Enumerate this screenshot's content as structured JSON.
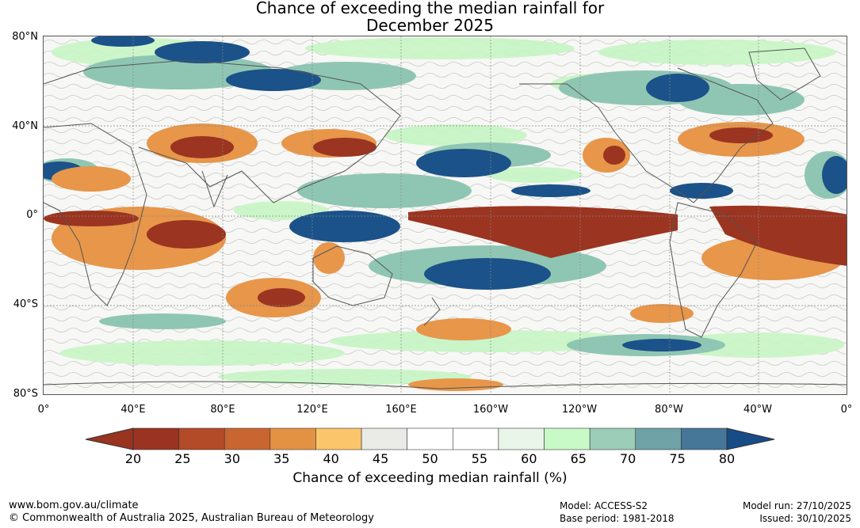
{
  "title": {
    "line1": "Chance of exceeding the median rainfall for",
    "line2": "December 2025"
  },
  "map": {
    "lat_labels": [
      "80°N",
      "40°N",
      "0°",
      "40°S",
      "80°S"
    ],
    "lon_labels": [
      "0°",
      "40°E",
      "80°E",
      "120°E",
      "160°E",
      "160°W",
      "120°W",
      "80°W",
      "40°W",
      "0°"
    ]
  },
  "colorbar": {
    "ticks": [
      "20",
      "25",
      "30",
      "35",
      "40",
      "45",
      "50",
      "55",
      "60",
      "65",
      "70",
      "75",
      "80"
    ],
    "colors": [
      "#9a3322",
      "#b34a28",
      "#c96531",
      "#e39243",
      "#fbc56b",
      "#eaeae6",
      "#ffffff",
      "#ffffff",
      "#eaf5e9",
      "#c8fac7",
      "#9bcdb8",
      "#6fa2a6",
      "#467698"
    ],
    "end_low_color": "#983420",
    "end_high_color": "#174c87",
    "title": "Chance of exceeding median rainfall (%)"
  },
  "footer": {
    "website": "www.bom.gov.au/climate",
    "copyright": "© Commonwealth of Australia 2025, Australian Bureau of Meteorology",
    "model": "Model: ACCESS-S2",
    "base_period": "Base period: 1981-2018",
    "model_run": "Model run: 27/10/2025",
    "issued": "Issued: 30/10/2025"
  }
}
